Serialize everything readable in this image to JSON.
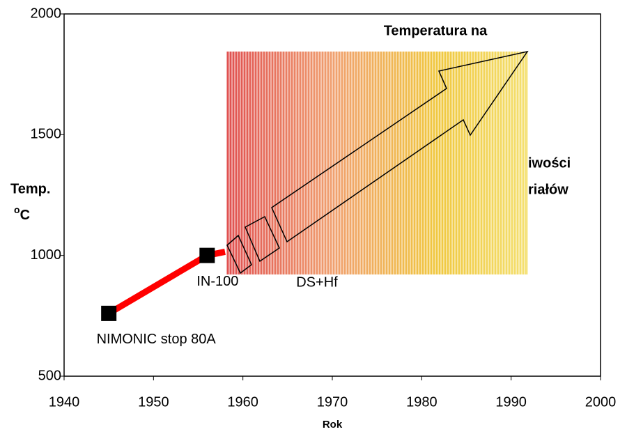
{
  "chart_data": {
    "type": "line",
    "x_label": "Rok",
    "y_label": "Temp.",
    "y_label_unit": "C",
    "y_label_unit_prefix": "o",
    "x": [
      1945,
      1956,
      1958
    ],
    "series": [
      {
        "color": "#ff0000",
        "values": [
          760,
          1000,
          1015
        ]
      }
    ],
    "point_labels": [
      "NIMONIC stop 80A",
      "IN-100",
      null
    ],
    "annotations": [
      "Temperatura na",
      "DS+Hf",
      "iwości",
      "riałów"
    ],
    "xlim": [
      1940,
      2000
    ],
    "xticks": [
      1940,
      1950,
      1960,
      1970,
      1980,
      1990,
      2000
    ],
    "ylim": [
      500,
      2000
    ],
    "yticks": [
      500,
      1000,
      1500,
      2000
    ]
  }
}
